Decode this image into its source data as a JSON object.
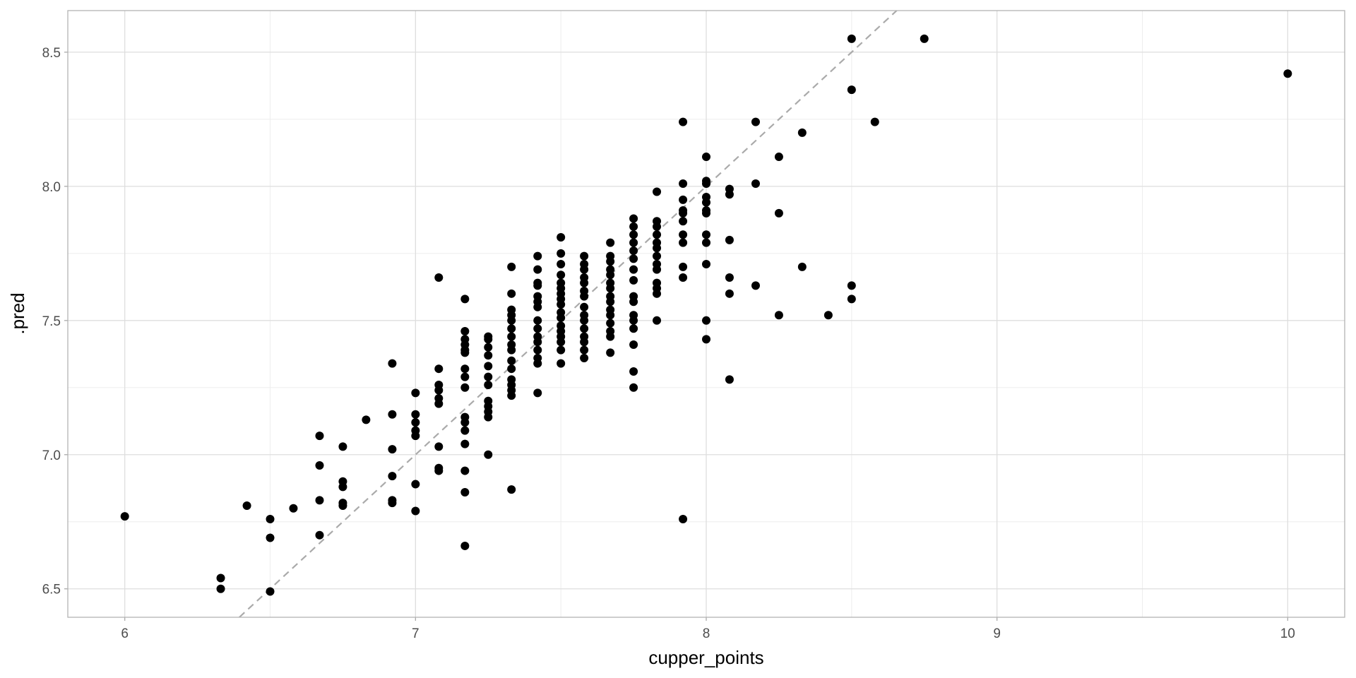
{
  "chart_data": {
    "type": "scatter",
    "x_label": "cupper_points",
    "y_label": ".pred",
    "xlim": [
      5.804,
      10.196
    ],
    "ylim": [
      6.394,
      8.655
    ],
    "xticks": [
      6,
      7,
      8,
      9,
      10
    ],
    "yticks": [
      6.5,
      {
        "value": 7,
        "label": "7.0"
      },
      7.5,
      {
        "value": 8,
        "label": "8.0"
      },
      8.5
    ],
    "grid": true,
    "color": "#000000",
    "x": [
      6,
      6.33,
      6.33,
      6.42,
      6.5,
      6.5,
      6.5,
      6.58,
      6.67,
      6.67,
      6.67,
      6.67,
      6.75,
      6.75,
      6.75,
      6.75,
      6.75,
      6.83,
      6.92,
      6.92,
      6.92,
      6.92,
      6.92,
      6.92,
      7,
      7,
      7,
      7,
      7,
      7,
      7,
      7.08,
      7.08,
      7.08,
      7.08,
      7.08,
      7.08,
      7.08,
      7.08,
      7.08,
      7.17,
      7.17,
      7.17,
      7.17,
      7.17,
      7.17,
      7.17,
      7.17,
      7.17,
      7.17,
      7.17,
      7.17,
      7.17,
      7.17,
      7.17,
      7.17,
      7.25,
      7.25,
      7.25,
      7.25,
      7.25,
      7.25,
      7.25,
      7.25,
      7.25,
      7.25,
      7.25,
      7.25,
      7.33,
      7.33,
      7.33,
      7.33,
      7.33,
      7.33,
      7.33,
      7.33,
      7.33,
      7.33,
      7.33,
      7.33,
      7.33,
      7.33,
      7.33,
      7.33,
      7.42,
      7.42,
      7.42,
      7.42,
      7.42,
      7.42,
      7.42,
      7.42,
      7.42,
      7.42,
      7.42,
      7.42,
      7.42,
      7.42,
      7.42,
      7.5,
      7.5,
      7.5,
      7.5,
      7.5,
      7.5,
      7.5,
      7.5,
      7.5,
      7.5,
      7.5,
      7.5,
      7.5,
      7.5,
      7.5,
      7.5,
      7.5,
      7.58,
      7.58,
      7.58,
      7.58,
      7.58,
      7.58,
      7.58,
      7.58,
      7.58,
      7.58,
      7.58,
      7.58,
      7.58,
      7.58,
      7.58,
      7.67,
      7.67,
      7.67,
      7.67,
      7.67,
      7.67,
      7.67,
      7.67,
      7.67,
      7.67,
      7.67,
      7.67,
      7.67,
      7.67,
      7.67,
      7.75,
      7.75,
      7.75,
      7.75,
      7.75,
      7.75,
      7.75,
      7.75,
      7.75,
      7.75,
      7.75,
      7.75,
      7.75,
      7.75,
      7.75,
      7.75,
      7.83,
      7.83,
      7.83,
      7.83,
      7.83,
      7.83,
      7.83,
      7.83,
      7.83,
      7.83,
      7.83,
      7.83,
      7.83,
      7.92,
      7.92,
      7.92,
      7.92,
      7.92,
      7.92,
      7.92,
      7.92,
      7.92,
      7.92,
      7.92,
      8,
      8,
      8,
      8,
      8,
      8,
      8,
      8,
      8,
      8,
      8,
      8,
      8.08,
      8.08,
      8.08,
      8.08,
      8.08,
      8.08,
      8.17,
      8.17,
      8.17,
      8.25,
      8.25,
      8.25,
      8.33,
      8.33,
      8.42,
      8.5,
      8.5,
      8.5,
      8.5,
      8.58,
      8.75,
      10
    ],
    "values": [
      6.77,
      6.54,
      6.5,
      6.81,
      6.76,
      6.69,
      6.49,
      6.8,
      7.07,
      6.96,
      6.83,
      6.7,
      7.03,
      6.9,
      6.88,
      6.82,
      6.81,
      7.13,
      7.34,
      7.15,
      7.02,
      6.92,
      6.83,
      6.82,
      7.23,
      7.15,
      7.12,
      7.09,
      7.07,
      6.89,
      6.79,
      7.66,
      7.32,
      7.26,
      7.24,
      7.21,
      7.19,
      7.03,
      6.95,
      6.94,
      7.58,
      7.46,
      7.43,
      7.41,
      7.39,
      7.38,
      7.32,
      7.29,
      7.25,
      7.14,
      7.12,
      7.09,
      7.04,
      6.94,
      6.86,
      6.66,
      7.44,
      7.43,
      7.4,
      7.37,
      7.33,
      7.29,
      7.26,
      7.2,
      7.18,
      7.16,
      7.14,
      7.0,
      7.7,
      7.6,
      7.54,
      7.52,
      7.5,
      7.47,
      7.44,
      7.41,
      7.39,
      7.35,
      7.32,
      7.28,
      7.26,
      7.24,
      7.22,
      6.87,
      7.74,
      7.69,
      7.64,
      7.63,
      7.59,
      7.57,
      7.55,
      7.5,
      7.47,
      7.44,
      7.42,
      7.39,
      7.36,
      7.34,
      7.23,
      7.81,
      7.75,
      7.71,
      7.67,
      7.64,
      7.62,
      7.6,
      7.58,
      7.56,
      7.53,
      7.51,
      7.48,
      7.46,
      7.44,
      7.42,
      7.39,
      7.34,
      7.74,
      7.71,
      7.69,
      7.66,
      7.64,
      7.61,
      7.59,
      7.55,
      7.52,
      7.5,
      7.47,
      7.44,
      7.42,
      7.39,
      7.36,
      7.79,
      7.74,
      7.72,
      7.69,
      7.67,
      7.64,
      7.62,
      7.59,
      7.57,
      7.54,
      7.52,
      7.49,
      7.46,
      7.44,
      7.38,
      7.88,
      7.85,
      7.82,
      7.79,
      7.76,
      7.73,
      7.69,
      7.65,
      7.59,
      7.57,
      7.52,
      7.5,
      7.47,
      7.41,
      7.31,
      7.25,
      7.98,
      7.87,
      7.85,
      7.82,
      7.79,
      7.77,
      7.74,
      7.71,
      7.69,
      7.64,
      7.62,
      7.6,
      7.5,
      8.24,
      8.01,
      7.95,
      7.91,
      7.9,
      7.87,
      7.82,
      7.79,
      7.7,
      7.66,
      6.76,
      8.11,
      8.02,
      8.01,
      7.96,
      7.94,
      7.91,
      7.9,
      7.82,
      7.79,
      7.71,
      7.5,
      7.43,
      7.99,
      7.97,
      7.8,
      7.66,
      7.6,
      7.28,
      8.24,
      8.01,
      7.63,
      8.11,
      7.9,
      7.52,
      8.2,
      7.7,
      7.52,
      8.55,
      8.36,
      7.63,
      7.58,
      8.24,
      8.55,
      8.42
    ]
  }
}
